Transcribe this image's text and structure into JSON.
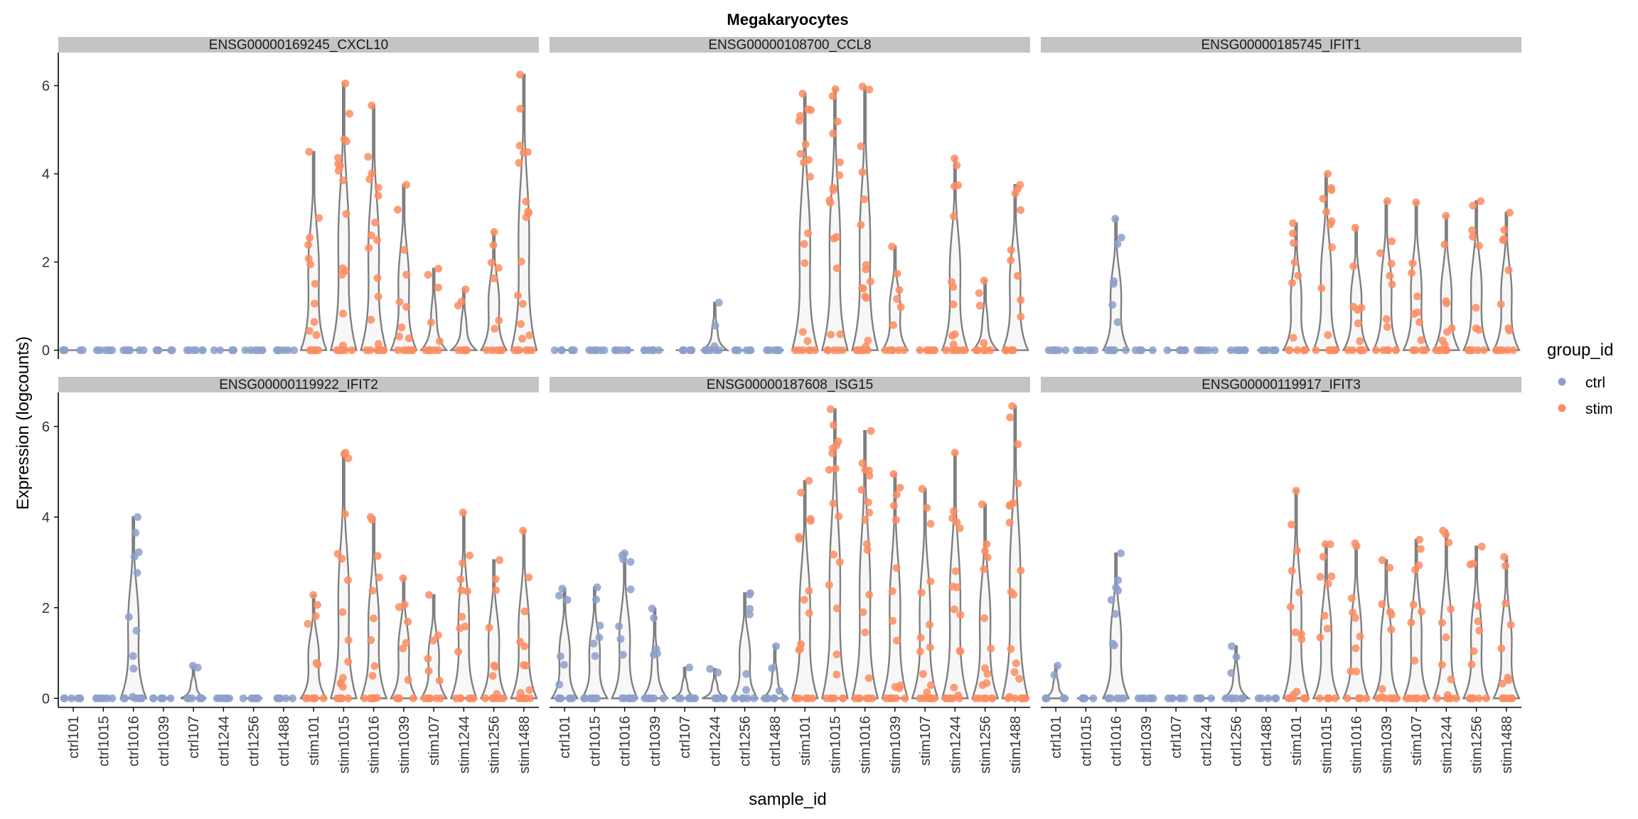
{
  "chart_data": {
    "type": "violin",
    "title": "Megakaryocytes",
    "xlabel": "sample_id",
    "ylabel": "Expression (logcounts)",
    "ylim": [
      -0.2,
      6.75
    ],
    "yticks": [
      0,
      2,
      4,
      6
    ],
    "grid": false,
    "legend": {
      "title": "group_id",
      "position": "right",
      "entries": [
        {
          "label": "ctrl",
          "color": "#8da0cb"
        },
        {
          "label": "stim",
          "color": "#fc8d62"
        }
      ]
    },
    "samples": [
      "ctrl101",
      "ctrl1015",
      "ctrl1016",
      "ctrl1039",
      "ctrl107",
      "ctrl1244",
      "ctrl1256",
      "ctrl1488",
      "stim101",
      "stim1015",
      "stim1016",
      "stim1039",
      "stim107",
      "stim1244",
      "stim1256",
      "stim1488"
    ],
    "panels": [
      {
        "label": "ENSG00000169245_CXCL10",
        "max_values": [
          0,
          0,
          0,
          0,
          0,
          0,
          0,
          0,
          4.5,
          6.05,
          5.55,
          3.75,
          1.85,
          1.38,
          2.68,
          6.25
        ]
      },
      {
        "label": "ENSG00000108700_CCL8",
        "max_values": [
          0,
          0,
          0,
          0,
          0,
          1.08,
          0,
          0,
          5.82,
          5.92,
          5.98,
          2.35,
          0,
          4.35,
          1.58,
          3.75
        ]
      },
      {
        "label": "ENSG00000185745_IFIT1",
        "max_values": [
          0,
          0,
          2.98,
          0,
          0,
          0,
          0,
          0,
          2.88,
          4.0,
          2.78,
          3.38,
          3.35,
          3.05,
          3.38,
          3.12
        ]
      },
      {
        "label": "ENSG00000119922_IFIT2",
        "max_values": [
          0,
          0,
          4.0,
          0,
          0.72,
          0,
          0,
          0,
          2.28,
          5.42,
          4.0,
          2.65,
          2.28,
          4.1,
          3.05,
          3.7
        ]
      },
      {
        "label": "ENSG00000187608_ISG15",
        "max_values": [
          2.42,
          2.45,
          3.2,
          1.98,
          0.68,
          0.65,
          2.32,
          1.15,
          4.8,
          6.38,
          5.9,
          4.95,
          4.62,
          5.42,
          4.28,
          6.45
        ]
      },
      {
        "label": "ENSG00000119917_IFIT3",
        "max_values": [
          0.72,
          0,
          3.2,
          0,
          0,
          0,
          1.15,
          0,
          4.58,
          3.4,
          3.42,
          3.05,
          3.5,
          3.7,
          3.35,
          3.12
        ]
      }
    ]
  }
}
